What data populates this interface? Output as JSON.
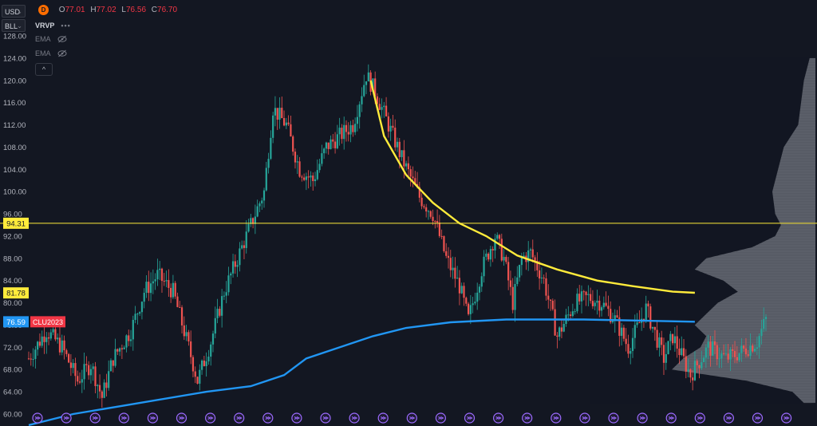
{
  "toolbar": {
    "currency": "USD",
    "symbol_short": "BLL"
  },
  "legend": {
    "badge": "D",
    "open_label": "O",
    "open": "77.01",
    "high_label": "H",
    "high": "77.02",
    "low_label": "L",
    "low": "76.56",
    "close_label": "C",
    "close": "76.70"
  },
  "indicators": [
    {
      "label": "VRVP",
      "extra": "•••"
    },
    {
      "label": "EMA"
    },
    {
      "label": "EMA"
    }
  ],
  "collapse_label": "^",
  "colors": {
    "background": "#131722",
    "up": "#26a69a",
    "down": "#ef5350",
    "ema_yellow": "#ffeb3b",
    "ema_blue": "#2196f3",
    "hline": "#ffeb3b",
    "badge_price": "#2196f3",
    "badge_symbol": "#f23645",
    "profile": "#a5a9b3",
    "event_icon": "#9c6bff"
  },
  "chart_data": {
    "type": "candlestick",
    "y_axis_ticks": [
      "128.00",
      "124.00",
      "120.00",
      "116.00",
      "112.00",
      "108.00",
      "104.00",
      "100.00",
      "96.00",
      "92.00",
      "88.00",
      "84.00",
      "80.00",
      "76.00",
      "72.00",
      "68.00",
      "64.00",
      "60.00"
    ],
    "ylim": [
      60,
      129
    ],
    "horizontal_line": {
      "value": 94.31,
      "label": "94.31"
    },
    "price_labels": [
      {
        "value": 81.78,
        "label": "81.78"
      },
      {
        "value": 76.59,
        "label": "76.59",
        "symbol": "CLU2023"
      }
    ],
    "price_path": [
      [
        0,
        70
      ],
      [
        8,
        75
      ],
      [
        15,
        72
      ],
      [
        22,
        66
      ],
      [
        28,
        69
      ],
      [
        33,
        63
      ],
      [
        38,
        70
      ],
      [
        46,
        75
      ],
      [
        52,
        82
      ],
      [
        58,
        85
      ],
      [
        65,
        82
      ],
      [
        72,
        72
      ],
      [
        76,
        66
      ],
      [
        82,
        73
      ],
      [
        88,
        82
      ],
      [
        94,
        88
      ],
      [
        100,
        94
      ],
      [
        106,
        100
      ],
      [
        110,
        115
      ],
      [
        116,
        112
      ],
      [
        122,
        104
      ],
      [
        128,
        102
      ],
      [
        134,
        108
      ],
      [
        140,
        110
      ],
      [
        146,
        112
      ],
      [
        152,
        121
      ],
      [
        156,
        118
      ],
      [
        162,
        112
      ],
      [
        168,
        106
      ],
      [
        176,
        99
      ],
      [
        182,
        96
      ],
      [
        188,
        88
      ],
      [
        194,
        83
      ],
      [
        198,
        77
      ],
      [
        204,
        86
      ],
      [
        210,
        92
      ],
      [
        214,
        88
      ],
      [
        218,
        80
      ],
      [
        222,
        88
      ],
      [
        226,
        89
      ],
      [
        232,
        84
      ],
      [
        238,
        74
      ],
      [
        242,
        77
      ],
      [
        246,
        80
      ],
      [
        252,
        81
      ],
      [
        258,
        80
      ],
      [
        264,
        77
      ],
      [
        270,
        72
      ],
      [
        278,
        79
      ],
      [
        286,
        70
      ],
      [
        290,
        74
      ],
      [
        298,
        67
      ],
      [
        306,
        72
      ],
      [
        314,
        70
      ],
      [
        320,
        71
      ],
      [
        328,
        73
      ],
      [
        332,
        77
      ]
    ],
    "ema_yellow": [
      [
        154,
        120
      ],
      [
        160,
        110
      ],
      [
        170,
        103
      ],
      [
        182,
        98
      ],
      [
        194,
        94.3
      ],
      [
        206,
        92
      ],
      [
        220,
        88.5
      ],
      [
        238,
        86
      ],
      [
        256,
        84
      ],
      [
        272,
        83
      ],
      [
        290,
        82
      ],
      [
        300,
        81.8
      ]
    ],
    "ema_blue": [
      [
        0,
        58
      ],
      [
        20,
        60
      ],
      [
        50,
        62
      ],
      [
        80,
        64
      ],
      [
        100,
        65
      ],
      [
        115,
        67
      ],
      [
        125,
        70
      ],
      [
        140,
        72
      ],
      [
        155,
        74
      ],
      [
        170,
        75.5
      ],
      [
        190,
        76.5
      ],
      [
        215,
        77
      ],
      [
        250,
        77
      ],
      [
        300,
        76.6
      ]
    ],
    "volume_profile": [
      [
        124,
        2
      ],
      [
        120,
        4
      ],
      [
        116,
        5
      ],
      [
        112,
        6
      ],
      [
        108,
        11
      ],
      [
        104,
        13
      ],
      [
        100,
        15
      ],
      [
        96,
        14
      ],
      [
        94,
        12
      ],
      [
        92,
        14
      ],
      [
        90,
        22
      ],
      [
        88,
        38
      ],
      [
        86,
        42
      ],
      [
        84,
        32
      ],
      [
        82,
        27
      ],
      [
        80,
        34
      ],
      [
        78,
        38
      ],
      [
        76,
        42
      ],
      [
        74,
        38
      ],
      [
        72,
        40
      ],
      [
        70,
        46
      ],
      [
        68,
        50
      ],
      [
        66,
        24
      ],
      [
        64,
        8
      ],
      [
        62,
        4
      ]
    ],
    "event_count": 27
  }
}
